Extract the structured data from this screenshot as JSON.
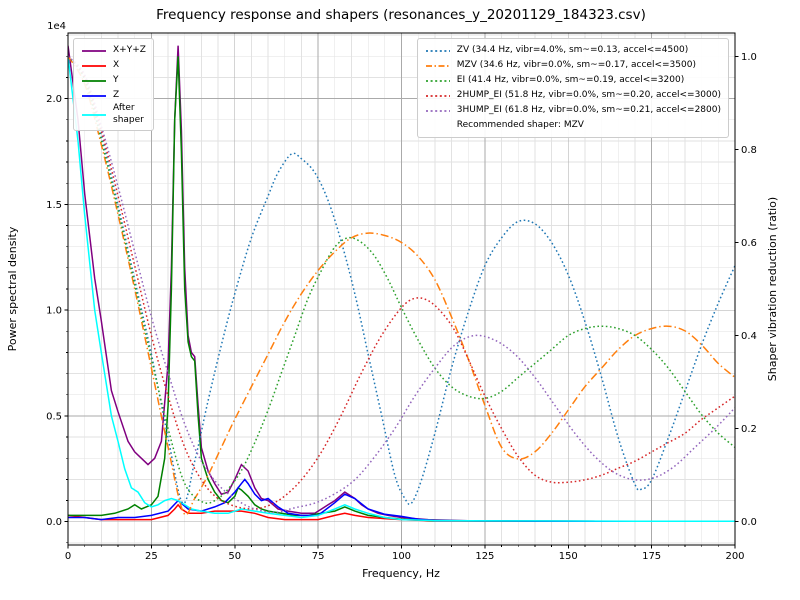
{
  "title": "Frequency response and shapers (resonances_y_20201129_184323.csv)",
  "chart_data": {
    "type": "line",
    "title": "Frequency response and shapers (resonances_y_20201129_184323.csv)",
    "xlabel": "Frequency, Hz",
    "ylabel_left": "Power spectral density",
    "ylabel_right": "Shaper vibration reduction (ratio)",
    "y_offset_label": "1e4",
    "xlim": [
      0,
      200
    ],
    "x_ticks": [
      0,
      25,
      50,
      75,
      100,
      125,
      150,
      175,
      200
    ],
    "x_minor_step": 5,
    "ylim_left": [
      -0.11,
      2.31
    ],
    "y_ticks_left": [
      0,
      0.5,
      1.0,
      1.5,
      2.0
    ],
    "y_minor_step_left": 0.1,
    "ylim_right": [
      -0.05,
      1.05
    ],
    "y_ticks_right": [
      0,
      0.2,
      0.4,
      0.6,
      0.8,
      1.0
    ],
    "grid": {
      "major_color": "#aaaaaa",
      "minor_color": "#e2e2e2"
    },
    "legend_note": "Recommended shaper: MZV",
    "psd_series": [
      {
        "name": "x-y-z-sum",
        "label": "X+Y+Z",
        "color": "#800080",
        "dash": "solid",
        "x": [
          0,
          3,
          5,
          8,
          10,
          13,
          15,
          18,
          20,
          22,
          24,
          26,
          28,
          30,
          31,
          32,
          33,
          34,
          35,
          36,
          37,
          38,
          39,
          40,
          42,
          44,
          46,
          48,
          50,
          52,
          54,
          56,
          58,
          60,
          63,
          66,
          70,
          74,
          78,
          80,
          83,
          86,
          88,
          90,
          93,
          96,
          100,
          104,
          108,
          112,
          120,
          130,
          140,
          160,
          180,
          200
        ],
        "y": [
          2.25,
          1.9,
          1.55,
          1.15,
          0.95,
          0.62,
          0.52,
          0.38,
          0.33,
          0.3,
          0.27,
          0.3,
          0.38,
          0.75,
          1.2,
          1.9,
          2.25,
          1.85,
          1.2,
          0.88,
          0.8,
          0.78,
          0.55,
          0.35,
          0.24,
          0.18,
          0.13,
          0.14,
          0.2,
          0.27,
          0.24,
          0.16,
          0.11,
          0.1,
          0.06,
          0.05,
          0.04,
          0.04,
          0.08,
          0.1,
          0.14,
          0.11,
          0.08,
          0.06,
          0.04,
          0.03,
          0.02,
          0.015,
          0.01,
          0.008,
          0.005,
          0.004,
          0.003,
          0.002,
          0.002,
          0.002
        ]
      },
      {
        "name": "x",
        "label": "X",
        "color": "#ff0000",
        "dash": "solid",
        "x": [
          0,
          5,
          10,
          15,
          20,
          25,
          30,
          32,
          33,
          34,
          36,
          40,
          44,
          48,
          52,
          56,
          60,
          65,
          70,
          75,
          80,
          83,
          86,
          90,
          95,
          100,
          105,
          110,
          120,
          140,
          160,
          180,
          200
        ],
        "y": [
          0.03,
          0.02,
          0.01,
          0.01,
          0.01,
          0.01,
          0.03,
          0.06,
          0.08,
          0.06,
          0.04,
          0.04,
          0.05,
          0.05,
          0.05,
          0.04,
          0.02,
          0.01,
          0.01,
          0.01,
          0.03,
          0.04,
          0.03,
          0.02,
          0.015,
          0.01,
          0.007,
          0.005,
          0.004,
          0.003,
          0.002,
          0.002,
          0.002
        ]
      },
      {
        "name": "y",
        "label": "Y",
        "color": "#008000",
        "dash": "solid",
        "x": [
          0,
          5,
          10,
          14,
          18,
          20,
          22,
          25,
          27,
          29,
          30,
          31,
          32,
          33,
          34,
          35,
          36,
          37,
          38,
          39,
          40,
          41,
          42,
          44,
          46,
          48,
          50,
          51,
          52,
          54,
          56,
          58,
          60,
          64,
          68,
          72,
          76,
          80,
          83,
          86,
          90,
          95,
          100,
          105,
          110,
          120,
          140,
          160,
          180,
          200
        ],
        "y": [
          0.03,
          0.03,
          0.03,
          0.04,
          0.06,
          0.08,
          0.06,
          0.08,
          0.12,
          0.3,
          0.55,
          1.1,
          1.9,
          2.2,
          1.75,
          1.1,
          0.85,
          0.78,
          0.76,
          0.5,
          0.3,
          0.25,
          0.2,
          0.14,
          0.1,
          0.09,
          0.12,
          0.16,
          0.15,
          0.12,
          0.08,
          0.06,
          0.05,
          0.04,
          0.03,
          0.03,
          0.04,
          0.05,
          0.07,
          0.05,
          0.03,
          0.02,
          0.012,
          0.008,
          0.005,
          0.004,
          0.003,
          0.002,
          0.002,
          0.002
        ]
      },
      {
        "name": "z",
        "label": "Z",
        "color": "#0000ff",
        "dash": "solid",
        "x": [
          0,
          5,
          10,
          15,
          20,
          25,
          30,
          33,
          36,
          40,
          44,
          47,
          50,
          52,
          53,
          54,
          56,
          58,
          60,
          63,
          66,
          70,
          75,
          80,
          83,
          86,
          90,
          95,
          100,
          105,
          110,
          120,
          140,
          160,
          180,
          200
        ],
        "y": [
          0.02,
          0.02,
          0.01,
          0.02,
          0.02,
          0.03,
          0.05,
          0.1,
          0.06,
          0.05,
          0.07,
          0.09,
          0.14,
          0.18,
          0.2,
          0.18,
          0.13,
          0.1,
          0.11,
          0.07,
          0.04,
          0.03,
          0.03,
          0.09,
          0.13,
          0.11,
          0.06,
          0.035,
          0.025,
          0.012,
          0.006,
          0.004,
          0.003,
          0.002,
          0.002,
          0.002
        ]
      },
      {
        "name": "after-shaper",
        "label": "After\nshaper",
        "color": "#00ffff",
        "dash": "solid",
        "x": [
          0,
          3,
          5,
          8,
          10,
          13,
          15,
          17,
          19,
          20,
          21,
          23,
          25,
          27,
          29,
          31,
          33,
          35,
          37,
          40,
          44,
          48,
          52,
          56,
          60,
          65,
          70,
          75,
          80,
          83,
          86,
          90,
          95,
          100,
          110,
          120,
          140,
          160,
          180,
          200
        ],
        "y": [
          2.2,
          1.8,
          1.45,
          1.0,
          0.8,
          0.5,
          0.38,
          0.25,
          0.16,
          0.15,
          0.14,
          0.09,
          0.07,
          0.08,
          0.1,
          0.11,
          0.1,
          0.08,
          0.06,
          0.05,
          0.04,
          0.04,
          0.06,
          0.05,
          0.04,
          0.03,
          0.02,
          0.03,
          0.06,
          0.08,
          0.06,
          0.04,
          0.02,
          0.01,
          0.006,
          0.005,
          0.004,
          0.003,
          0.002,
          0.002
        ]
      }
    ],
    "shaper_series": [
      {
        "name": "zv",
        "label": "ZV (34.4 Hz, vibr=4.0%, sm~=0.13, accel<=4500)",
        "color": "#1f77b4",
        "dash": "dotted",
        "x": [
          0,
          5,
          10,
          15,
          20,
          25,
          30,
          34.4,
          38,
          42,
          46,
          50,
          55,
          60,
          63,
          67,
          70,
          74,
          78,
          82,
          86,
          90,
          94,
          98,
          101,
          103,
          106,
          110,
          115,
          120,
          125,
          130,
          135,
          140,
          145,
          150,
          155,
          160,
          165,
          170,
          172,
          175,
          180,
          185,
          190,
          195,
          200
        ],
        "y": [
          1.0,
          0.95,
          0.83,
          0.68,
          0.52,
          0.36,
          0.18,
          0.04,
          0.13,
          0.26,
          0.38,
          0.49,
          0.61,
          0.7,
          0.75,
          0.79,
          0.78,
          0.75,
          0.69,
          0.6,
          0.49,
          0.36,
          0.23,
          0.1,
          0.05,
          0.04,
          0.09,
          0.19,
          0.33,
          0.45,
          0.55,
          0.61,
          0.645,
          0.64,
          0.6,
          0.53,
          0.43,
          0.31,
          0.18,
          0.08,
          0.07,
          0.09,
          0.18,
          0.28,
          0.38,
          0.47,
          0.55
        ]
      },
      {
        "name": "mzv",
        "label": "MZV (34.6 Hz, vibr=0.0%, sm~=0.17, accel<=3500)",
        "color": "#ff7f0e",
        "dash": "dashdot",
        "x": [
          0,
          5,
          10,
          15,
          20,
          25,
          30,
          34.6,
          38,
          42,
          46,
          50,
          55,
          60,
          65,
          70,
          75,
          80,
          85,
          90,
          95,
          100,
          105,
          110,
          115,
          120,
          125,
          130,
          135,
          140,
          145,
          150,
          155,
          160,
          165,
          170,
          175,
          180,
          185,
          190,
          195,
          200
        ],
        "y": [
          1.0,
          0.94,
          0.81,
          0.66,
          0.5,
          0.33,
          0.16,
          0.02,
          0.05,
          0.1,
          0.16,
          0.22,
          0.29,
          0.36,
          0.43,
          0.49,
          0.54,
          0.58,
          0.61,
          0.62,
          0.615,
          0.6,
          0.57,
          0.52,
          0.44,
          0.35,
          0.25,
          0.16,
          0.135,
          0.15,
          0.19,
          0.24,
          0.29,
          0.33,
          0.37,
          0.4,
          0.415,
          0.42,
          0.41,
          0.38,
          0.34,
          0.31
        ]
      },
      {
        "name": "ei",
        "label": "EI (41.4 Hz, vibr=0.0%, sm~=0.19, accel<=3200)",
        "color": "#2ca02c",
        "dash": "dotted",
        "x": [
          0,
          5,
          10,
          15,
          20,
          25,
          30,
          34,
          37,
          41.4,
          45,
          48,
          52,
          56,
          60,
          64,
          68,
          72,
          76,
          80,
          84,
          88,
          92,
          96,
          100,
          105,
          110,
          115,
          120,
          125,
          130,
          135,
          140,
          145,
          150,
          155,
          160,
          165,
          170,
          175,
          180,
          185,
          190,
          195,
          200
        ],
        "y": [
          1.0,
          0.95,
          0.82,
          0.67,
          0.51,
          0.35,
          0.2,
          0.1,
          0.06,
          0.04,
          0.05,
          0.07,
          0.11,
          0.17,
          0.24,
          0.32,
          0.4,
          0.48,
          0.54,
          0.59,
          0.61,
          0.6,
          0.57,
          0.52,
          0.46,
          0.39,
          0.33,
          0.29,
          0.27,
          0.265,
          0.28,
          0.31,
          0.34,
          0.37,
          0.4,
          0.415,
          0.42,
          0.415,
          0.4,
          0.37,
          0.33,
          0.28,
          0.23,
          0.19,
          0.16
        ]
      },
      {
        "name": "2hump-ei",
        "label": "2HUMP_EI (51.8 Hz, vibr=0.0%, sm~=0.20, accel<=3000)",
        "color": "#d62728",
        "dash": "dotted",
        "x": [
          0,
          5,
          10,
          15,
          20,
          25,
          30,
          35,
          40,
          45,
          51.8,
          58,
          64,
          70,
          76,
          82,
          88,
          94,
          100,
          104,
          108,
          112,
          116,
          120,
          125,
          130,
          135,
          140,
          145,
          150,
          155,
          160,
          165,
          170,
          175,
          180,
          185,
          190,
          195,
          200
        ],
        "y": [
          1.0,
          0.955,
          0.84,
          0.7,
          0.55,
          0.4,
          0.27,
          0.16,
          0.09,
          0.05,
          0.03,
          0.03,
          0.05,
          0.09,
          0.15,
          0.23,
          0.32,
          0.4,
          0.46,
          0.48,
          0.475,
          0.45,
          0.41,
          0.35,
          0.27,
          0.2,
          0.14,
          0.1,
          0.085,
          0.085,
          0.09,
          0.1,
          0.115,
          0.13,
          0.15,
          0.17,
          0.19,
          0.22,
          0.245,
          0.27
        ]
      },
      {
        "name": "3hump-ei",
        "label": "3HUMP_EI (61.8 Hz, vibr=0.0%, sm~=0.21, accel<=2800)",
        "color": "#9467bd",
        "dash": "dotted",
        "x": [
          0,
          5,
          10,
          15,
          20,
          25,
          30,
          35,
          40,
          45,
          50,
          55,
          61.8,
          68,
          74,
          80,
          86,
          92,
          98,
          104,
          110,
          116,
          122,
          128,
          134,
          140,
          146,
          152,
          158,
          164,
          170,
          176,
          182,
          188,
          194,
          200
        ],
        "y": [
          1.0,
          0.96,
          0.85,
          0.72,
          0.58,
          0.44,
          0.32,
          0.21,
          0.13,
          0.08,
          0.05,
          0.03,
          0.02,
          0.03,
          0.04,
          0.06,
          0.09,
          0.14,
          0.2,
          0.27,
          0.33,
          0.38,
          0.4,
          0.39,
          0.36,
          0.31,
          0.25,
          0.19,
          0.14,
          0.105,
          0.09,
          0.095,
          0.12,
          0.16,
          0.2,
          0.245
        ]
      }
    ]
  }
}
